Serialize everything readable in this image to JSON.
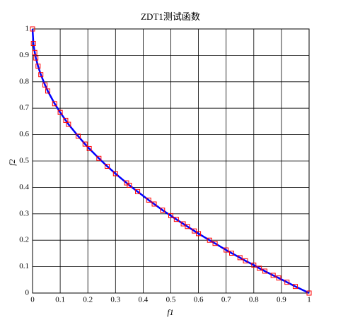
{
  "chart_data": {
    "type": "line",
    "title": "ZDT1测试函数",
    "xlabel": "f1",
    "ylabel": "f2",
    "x": [
      0,
      0.003,
      0.008,
      0.012,
      0.02,
      0.03,
      0.045,
      0.055,
      0.08,
      0.1,
      0.12,
      0.13,
      0.165,
      0.19,
      0.205,
      0.24,
      0.27,
      0.3,
      0.34,
      0.35,
      0.38,
      0.42,
      0.44,
      0.47,
      0.5,
      0.52,
      0.545,
      0.56,
      0.585,
      0.6,
      0.64,
      0.66,
      0.7,
      0.72,
      0.75,
      0.77,
      0.8,
      0.82,
      0.84,
      0.87,
      0.89,
      0.92,
      0.95,
      1
    ],
    "series": [
      {
        "color": "#0000ff",
        "marker": "square",
        "marker_color": "#ff0000",
        "values": [
          1,
          0.945,
          0.911,
          0.89,
          0.859,
          0.827,
          0.788,
          0.765,
          0.717,
          0.684,
          0.654,
          0.639,
          0.594,
          0.564,
          0.547,
          0.51,
          0.48,
          0.452,
          0.417,
          0.408,
          0.384,
          0.352,
          0.337,
          0.314,
          0.293,
          0.279,
          0.262,
          0.252,
          0.235,
          0.225,
          0.2,
          0.188,
          0.163,
          0.151,
          0.134,
          0.122,
          0.106,
          0.094,
          0.083,
          0.067,
          0.057,
          0.041,
          0.025,
          0
        ]
      }
    ],
    "xlim": [
      0,
      1
    ],
    "ylim": [
      0,
      1
    ],
    "xticks": [
      0,
      0.1,
      0.2,
      0.3,
      0.4,
      0.5,
      0.6,
      0.7,
      0.8,
      0.9,
      1
    ],
    "yticks": [
      0,
      0.1,
      0.2,
      0.3,
      0.4,
      0.5,
      0.6,
      0.7,
      0.8,
      0.9,
      1
    ],
    "grid": true
  }
}
